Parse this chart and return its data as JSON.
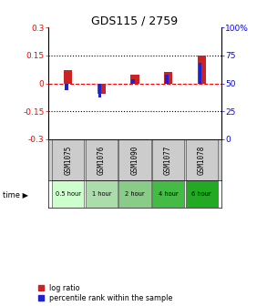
{
  "title": "GDS115 / 2759",
  "samples": [
    "GSM1075",
    "GSM1076",
    "GSM1090",
    "GSM1077",
    "GSM1078"
  ],
  "time_labels": [
    "0.5 hour",
    "1 hour",
    "2 hour",
    "4 hour",
    "6 hour"
  ],
  "time_colors": [
    "#ccffcc",
    "#aaddaa",
    "#88cc88",
    "#44bb44",
    "#22aa22"
  ],
  "log_ratios": [
    0.07,
    -0.055,
    0.048,
    0.062,
    0.148
  ],
  "percentile_ranks": [
    44,
    37,
    54,
    58,
    68
  ],
  "ylim_left": [
    -0.3,
    0.3
  ],
  "ylim_right": [
    0,
    100
  ],
  "red_bar_width": 0.25,
  "blue_bar_width": 0.1,
  "red_color": "#cc2222",
  "blue_color": "#2222cc",
  "left_ticks": [
    -0.3,
    -0.15,
    0.0,
    0.15,
    0.3
  ],
  "left_tick_labels": [
    "-0.3",
    "-0.15",
    "0",
    "0.15",
    "0.3"
  ],
  "right_ticks": [
    0,
    25,
    50,
    75,
    100
  ],
  "right_tick_labels": [
    "0",
    "25",
    "50",
    "75",
    "100%"
  ],
  "sample_box_color": "#cccccc",
  "background_color": "#ffffff"
}
